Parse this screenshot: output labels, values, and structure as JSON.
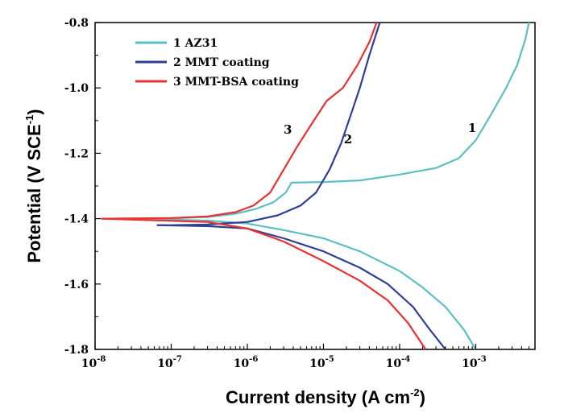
{
  "chart_data": {
    "type": "line",
    "title": "",
    "xlabel": "Current density (A cm",
    "xlabel_sup": "-2",
    "xlabel_end": ")",
    "ylabel": "Potential (V SCE",
    "ylabel_sup": "-1",
    "ylabel_end": ")",
    "xscale": "log",
    "xlim": [
      1e-08,
      0.006
    ],
    "ylim": [
      -1.8,
      -0.8
    ],
    "x_ticks": [
      {
        "value": 1e-08,
        "base": "10",
        "exp": "-8"
      },
      {
        "value": 1e-07,
        "base": "10",
        "exp": "-7"
      },
      {
        "value": 1e-06,
        "base": "10",
        "exp": "-6"
      },
      {
        "value": 1e-05,
        "base": "10",
        "exp": "-5"
      },
      {
        "value": 0.0001,
        "base": "10",
        "exp": "-4"
      },
      {
        "value": 0.001,
        "base": "10",
        "exp": "-3"
      }
    ],
    "y_ticks": [
      {
        "value": -0.8,
        "label": "-0.8"
      },
      {
        "value": -1.0,
        "label": "-1.0"
      },
      {
        "value": -1.2,
        "label": "-1.2"
      },
      {
        "value": -1.4,
        "label": "-1.4"
      },
      {
        "value": -1.6,
        "label": "-1.6"
      },
      {
        "value": -1.8,
        "label": "-1.8"
      }
    ],
    "legend_position": "top-left",
    "series": [
      {
        "name": "1 AZ31",
        "label": "1",
        "color": "#5bbfc3",
        "anodic": [
          [
            2e-08,
            -1.4
          ],
          [
            1e-07,
            -1.399
          ],
          [
            3e-07,
            -1.395
          ],
          [
            7e-07,
            -1.385
          ],
          [
            1.3e-06,
            -1.37
          ],
          [
            2.2e-06,
            -1.35
          ],
          [
            3.2e-06,
            -1.32
          ],
          [
            3.8e-06,
            -1.29
          ],
          [
            1e-05,
            -1.288
          ],
          [
            3e-05,
            -1.283
          ],
          [
            0.0001,
            -1.265
          ],
          [
            0.0003,
            -1.245
          ],
          [
            0.0006,
            -1.215
          ],
          [
            0.001,
            -1.16
          ],
          [
            0.0016,
            -1.08
          ],
          [
            0.0025,
            -1.0
          ],
          [
            0.0035,
            -0.93
          ],
          [
            0.0045,
            -0.85
          ],
          [
            0.005,
            -0.8
          ]
        ],
        "cathodic": [
          [
            2e-08,
            -1.4
          ],
          [
            1e-07,
            -1.403
          ],
          [
            3e-07,
            -1.406
          ],
          [
            1e-06,
            -1.415
          ],
          [
            3e-06,
            -1.435
          ],
          [
            1e-05,
            -1.46
          ],
          [
            3e-05,
            -1.5
          ],
          [
            0.0001,
            -1.56
          ],
          [
            0.0002,
            -1.61
          ],
          [
            0.0004,
            -1.67
          ],
          [
            0.0007,
            -1.74
          ],
          [
            0.001,
            -1.8
          ]
        ]
      },
      {
        "name": "2 MMT coating",
        "label": "2",
        "color": "#2e3f93",
        "anodic": [
          [
            6.5e-08,
            -1.42
          ],
          [
            1e-07,
            -1.42
          ],
          [
            3e-07,
            -1.418
          ],
          [
            1e-06,
            -1.41
          ],
          [
            2.5e-06,
            -1.39
          ],
          [
            5e-06,
            -1.36
          ],
          [
            8e-06,
            -1.32
          ],
          [
            1.2e-05,
            -1.25
          ],
          [
            1.7e-05,
            -1.17
          ],
          [
            2.3e-05,
            -1.08
          ],
          [
            3e-05,
            -1.0
          ],
          [
            4e-05,
            -0.9
          ],
          [
            5.5e-05,
            -0.8
          ]
        ],
        "cathodic": [
          [
            6.5e-08,
            -1.42
          ],
          [
            3e-07,
            -1.423
          ],
          [
            1e-06,
            -1.43
          ],
          [
            3e-06,
            -1.46
          ],
          [
            1e-05,
            -1.5
          ],
          [
            3e-05,
            -1.55
          ],
          [
            7e-05,
            -1.6
          ],
          [
            0.00015,
            -1.67
          ],
          [
            0.00025,
            -1.74
          ],
          [
            0.0004,
            -1.8
          ]
        ]
      },
      {
        "name": "3 MMT-BSA coating",
        "label": "3",
        "color": "#e8322f",
        "anodic": [
          [
            1.2e-08,
            -1.4
          ],
          [
            1e-07,
            -1.398
          ],
          [
            3e-07,
            -1.393
          ],
          [
            7e-07,
            -1.38
          ],
          [
            1.2e-06,
            -1.36
          ],
          [
            2e-06,
            -1.32
          ],
          [
            3e-06,
            -1.25
          ],
          [
            4.5e-06,
            -1.18
          ],
          [
            7e-06,
            -1.11
          ],
          [
            1.1e-05,
            -1.04
          ],
          [
            1.8e-05,
            -1.0
          ],
          [
            2.8e-05,
            -0.93
          ],
          [
            4e-05,
            -0.86
          ],
          [
            5e-05,
            -0.8
          ]
        ],
        "cathodic": [
          [
            1.2e-08,
            -1.4
          ],
          [
            3e-07,
            -1.41
          ],
          [
            1e-06,
            -1.43
          ],
          [
            3e-06,
            -1.47
          ],
          [
            1e-05,
            -1.53
          ],
          [
            3e-05,
            -1.59
          ],
          [
            7e-05,
            -1.65
          ],
          [
            0.00013,
            -1.72
          ],
          [
            0.00022,
            -1.8
          ]
        ]
      }
    ],
    "curve_labels": [
      {
        "text": "1",
        "x": 0.0009,
        "y": -1.135
      },
      {
        "text": "2",
        "x": 2.1e-05,
        "y": -1.17
      },
      {
        "text": "3",
        "x": 3.4e-06,
        "y": -1.14
      }
    ]
  }
}
